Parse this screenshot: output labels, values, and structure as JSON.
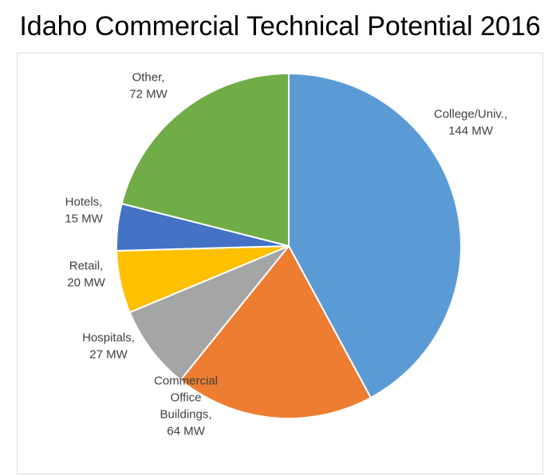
{
  "chart_data": {
    "type": "pie",
    "title": "Idaho Commercial Technical Potential 2016",
    "unit": "MW",
    "slices": [
      {
        "label": "College/Univ.",
        "value": 144,
        "value_label": "144 MW",
        "color": "#5b9bd5"
      },
      {
        "label": "Commercial Office Buildings",
        "value": 64,
        "value_label": "64 MW",
        "color": "#ed7d31"
      },
      {
        "label": "Hospitals",
        "value": 27,
        "value_label": "27 MW",
        "color": "#a5a5a5"
      },
      {
        "label": "Retail",
        "value": 20,
        "value_label": "20 MW",
        "color": "#ffc000"
      },
      {
        "label": "Hotels",
        "value": 15,
        "value_label": "15 MW",
        "color": "#4472c4"
      },
      {
        "label": "Other",
        "value": 72,
        "value_label": "72 MW",
        "color": "#70ad47"
      }
    ],
    "legend": "none",
    "data_labels": "outside"
  }
}
